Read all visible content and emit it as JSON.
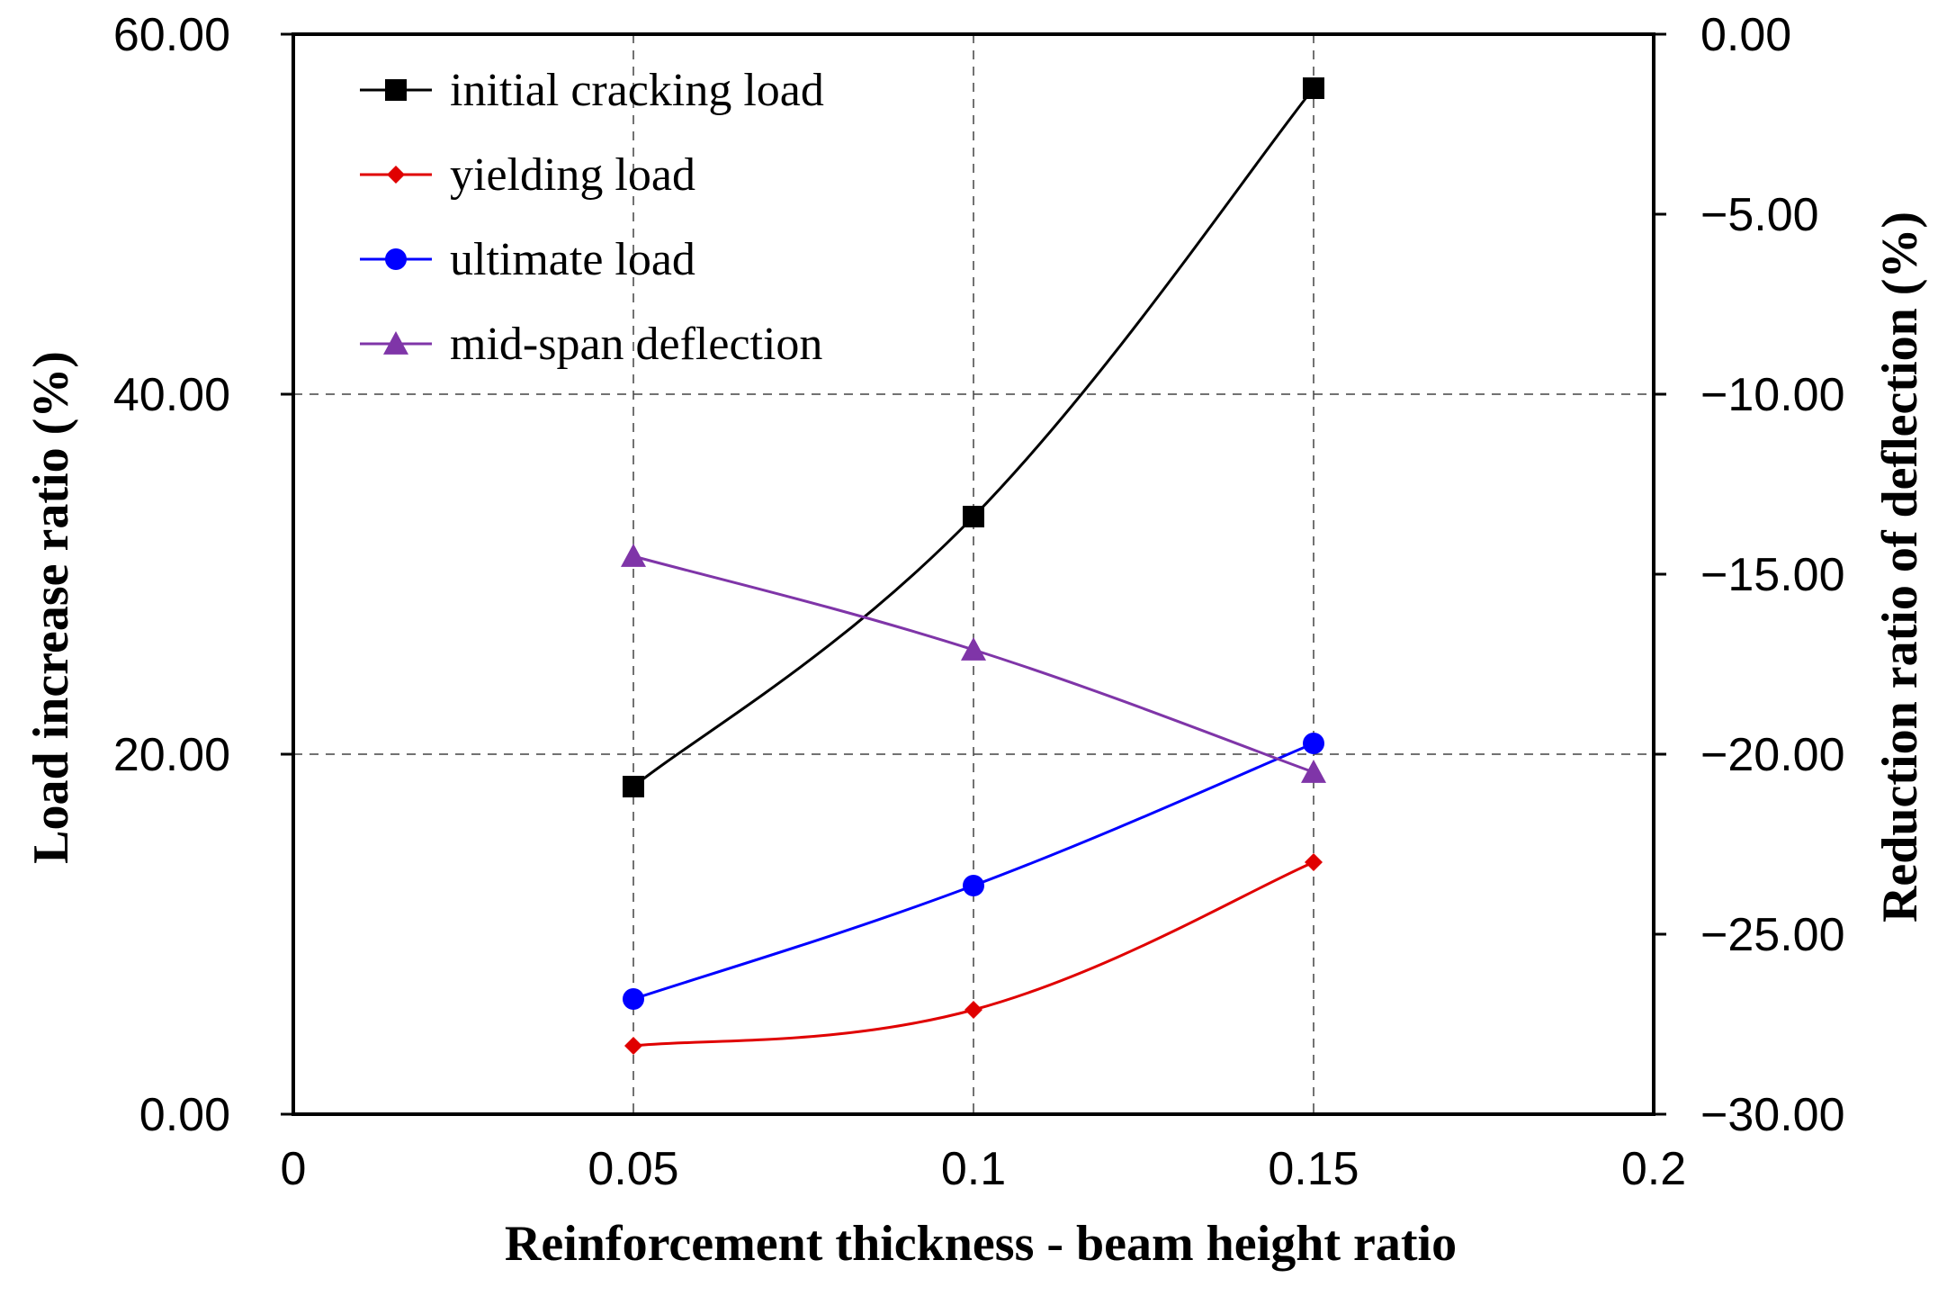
{
  "chart_data": {
    "type": "line",
    "title": "",
    "xlabel": "Reinforcement thickness - beam height ratio",
    "ylabel": "Load increase ratio (%)",
    "y2label": "Reduction ratio of deflection (%)",
    "xlim": [
      0,
      0.2
    ],
    "ylim": [
      0,
      60
    ],
    "y2lim": [
      -30,
      0
    ],
    "x_ticks": [
      0,
      0.05,
      0.1,
      0.15,
      0.2
    ],
    "x_tick_labels": [
      "0",
      "0.05",
      "0.1",
      "0.15",
      "0.2"
    ],
    "y_ticks": [
      0,
      20,
      40,
      60
    ],
    "y_tick_labels": [
      "0.00",
      "20.00",
      "40.00",
      "60.00"
    ],
    "y2_ticks": [
      0,
      -5,
      -10,
      -15,
      -20,
      -25,
      -30
    ],
    "y2_tick_labels": [
      "0.00",
      "−5.00",
      "−10.00",
      "−15.00",
      "−20.00",
      "−25.00",
      "−30.00"
    ],
    "grid": true,
    "legend_position": "top-left",
    "x": [
      0.05,
      0.1,
      0.15
    ],
    "series": [
      {
        "name": "initial cracking load",
        "axis": "left",
        "color": "#000000",
        "marker": "square",
        "values": [
          18.2,
          33.2,
          57.0
        ]
      },
      {
        "name": "yielding load",
        "axis": "left",
        "color": "#e00000",
        "marker": "diamond",
        "values": [
          3.8,
          5.8,
          14.0
        ]
      },
      {
        "name": "ultimate load",
        "axis": "left",
        "color": "#0000ff",
        "marker": "circle",
        "values": [
          6.4,
          12.7,
          20.6
        ]
      },
      {
        "name": "mid-span deflection",
        "axis": "right",
        "color": "#7f35a8",
        "marker": "triangle",
        "values": [
          -14.5,
          -17.1,
          -20.5
        ]
      }
    ]
  }
}
